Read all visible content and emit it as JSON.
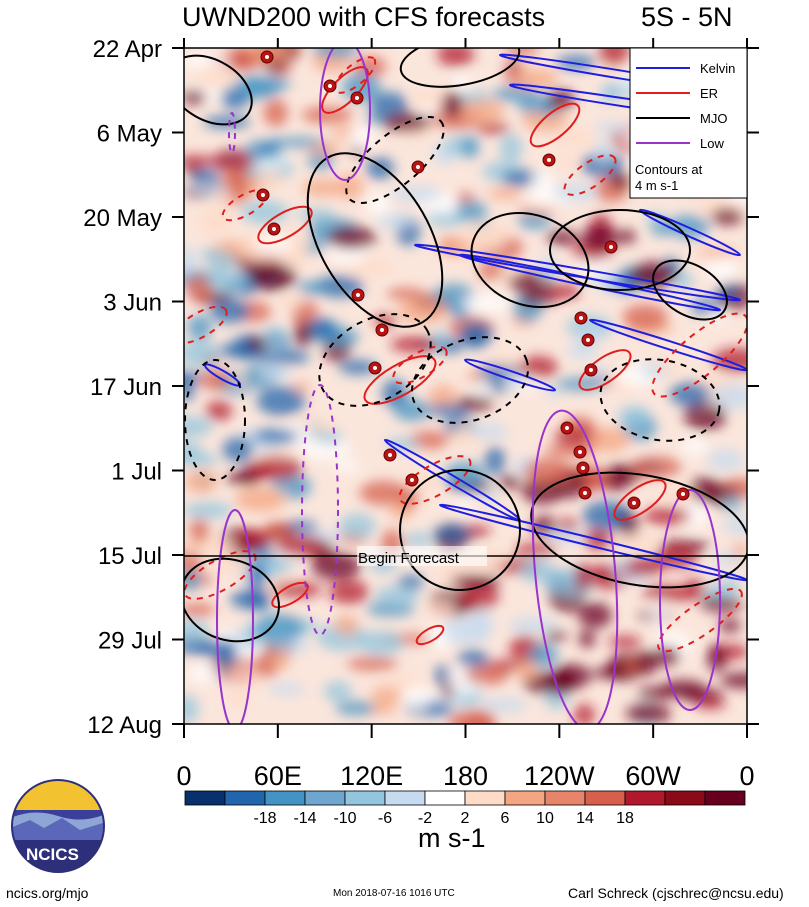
{
  "title": "UWND200 with CFS forecasts",
  "region": "5S - 5N",
  "units": "m s-1",
  "forecast_label": "Begin Forecast",
  "footer": {
    "left": "ncics.org/mjo",
    "middle": "Mon 2018-07-16 1016 UTC",
    "right": "Carl Schreck (cjschrec@ncsu.edu)"
  },
  "logo_text": "NCICS",
  "legend": {
    "items": [
      {
        "label": "Kelvin",
        "color": "#1e1ee0"
      },
      {
        "label": "ER",
        "color": "#e01e1e"
      },
      {
        "label": "MJO",
        "color": "#000000"
      },
      {
        "label": "Low",
        "color": "#9933cc"
      }
    ],
    "note_line1": "Contours at",
    "note_line2": "4 m s-1"
  },
  "colorbar": {
    "ticks": [
      "-18",
      "-14",
      "-10",
      "-6",
      "-2",
      "2",
      "6",
      "10",
      "14",
      "18"
    ],
    "colors": [
      "#08306b",
      "#2166ac",
      "#4393c3",
      "#6ea6cf",
      "#92c5de",
      "#c6dbef",
      "#ffffff",
      "#fddbc7",
      "#f4a582",
      "#e7856a",
      "#d6604d",
      "#b2182b",
      "#8b0a1a",
      "#67001f"
    ]
  },
  "chart_data": {
    "type": "heatmap",
    "title": "UWND200 with CFS forecasts",
    "xlabel": "",
    "ylabel": "",
    "x_ticks": [
      "0",
      "60E",
      "120E",
      "180",
      "120W",
      "60W",
      "0"
    ],
    "y_ticks": [
      "22 Apr",
      "6 May",
      "20 May",
      "3 Jun",
      "17 Jun",
      "1 Jul",
      "15 Jul",
      "29 Jul",
      "12 Aug"
    ],
    "colorbar_units": "m s-1",
    "forecast_start": "15 Jul"
  }
}
